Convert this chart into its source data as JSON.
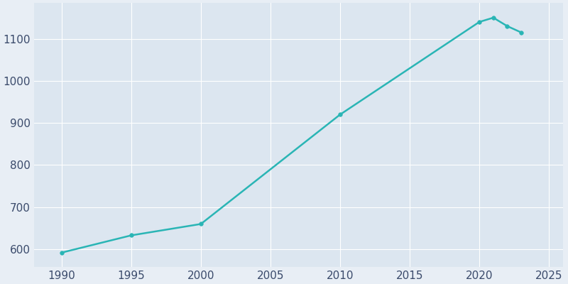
{
  "years": [
    1990,
    1995,
    2000,
    2010,
    2020,
    2021,
    2022,
    2023
  ],
  "population": [
    592,
    633,
    660,
    920,
    1140,
    1150,
    1130,
    1115
  ],
  "line_color": "#2ab5b5",
  "marker_color": "#2ab5b5",
  "marker_style": "o",
  "marker_size": 4,
  "line_width": 1.8,
  "fig_bg_color": "#e8eef5",
  "plot_bg_color": "#dce6f0",
  "xlabel": "",
  "ylabel": "",
  "xlim": [
    1988,
    2026
  ],
  "ylim": [
    558,
    1185
  ],
  "yticks": [
    600,
    700,
    800,
    900,
    1000,
    1100
  ],
  "xticks": [
    1990,
    1995,
    2000,
    2005,
    2010,
    2015,
    2020,
    2025
  ],
  "grid_color": "#ffffff",
  "grid_linewidth": 0.8,
  "tick_label_color": "#3a4a6b",
  "tick_label_size": 11
}
